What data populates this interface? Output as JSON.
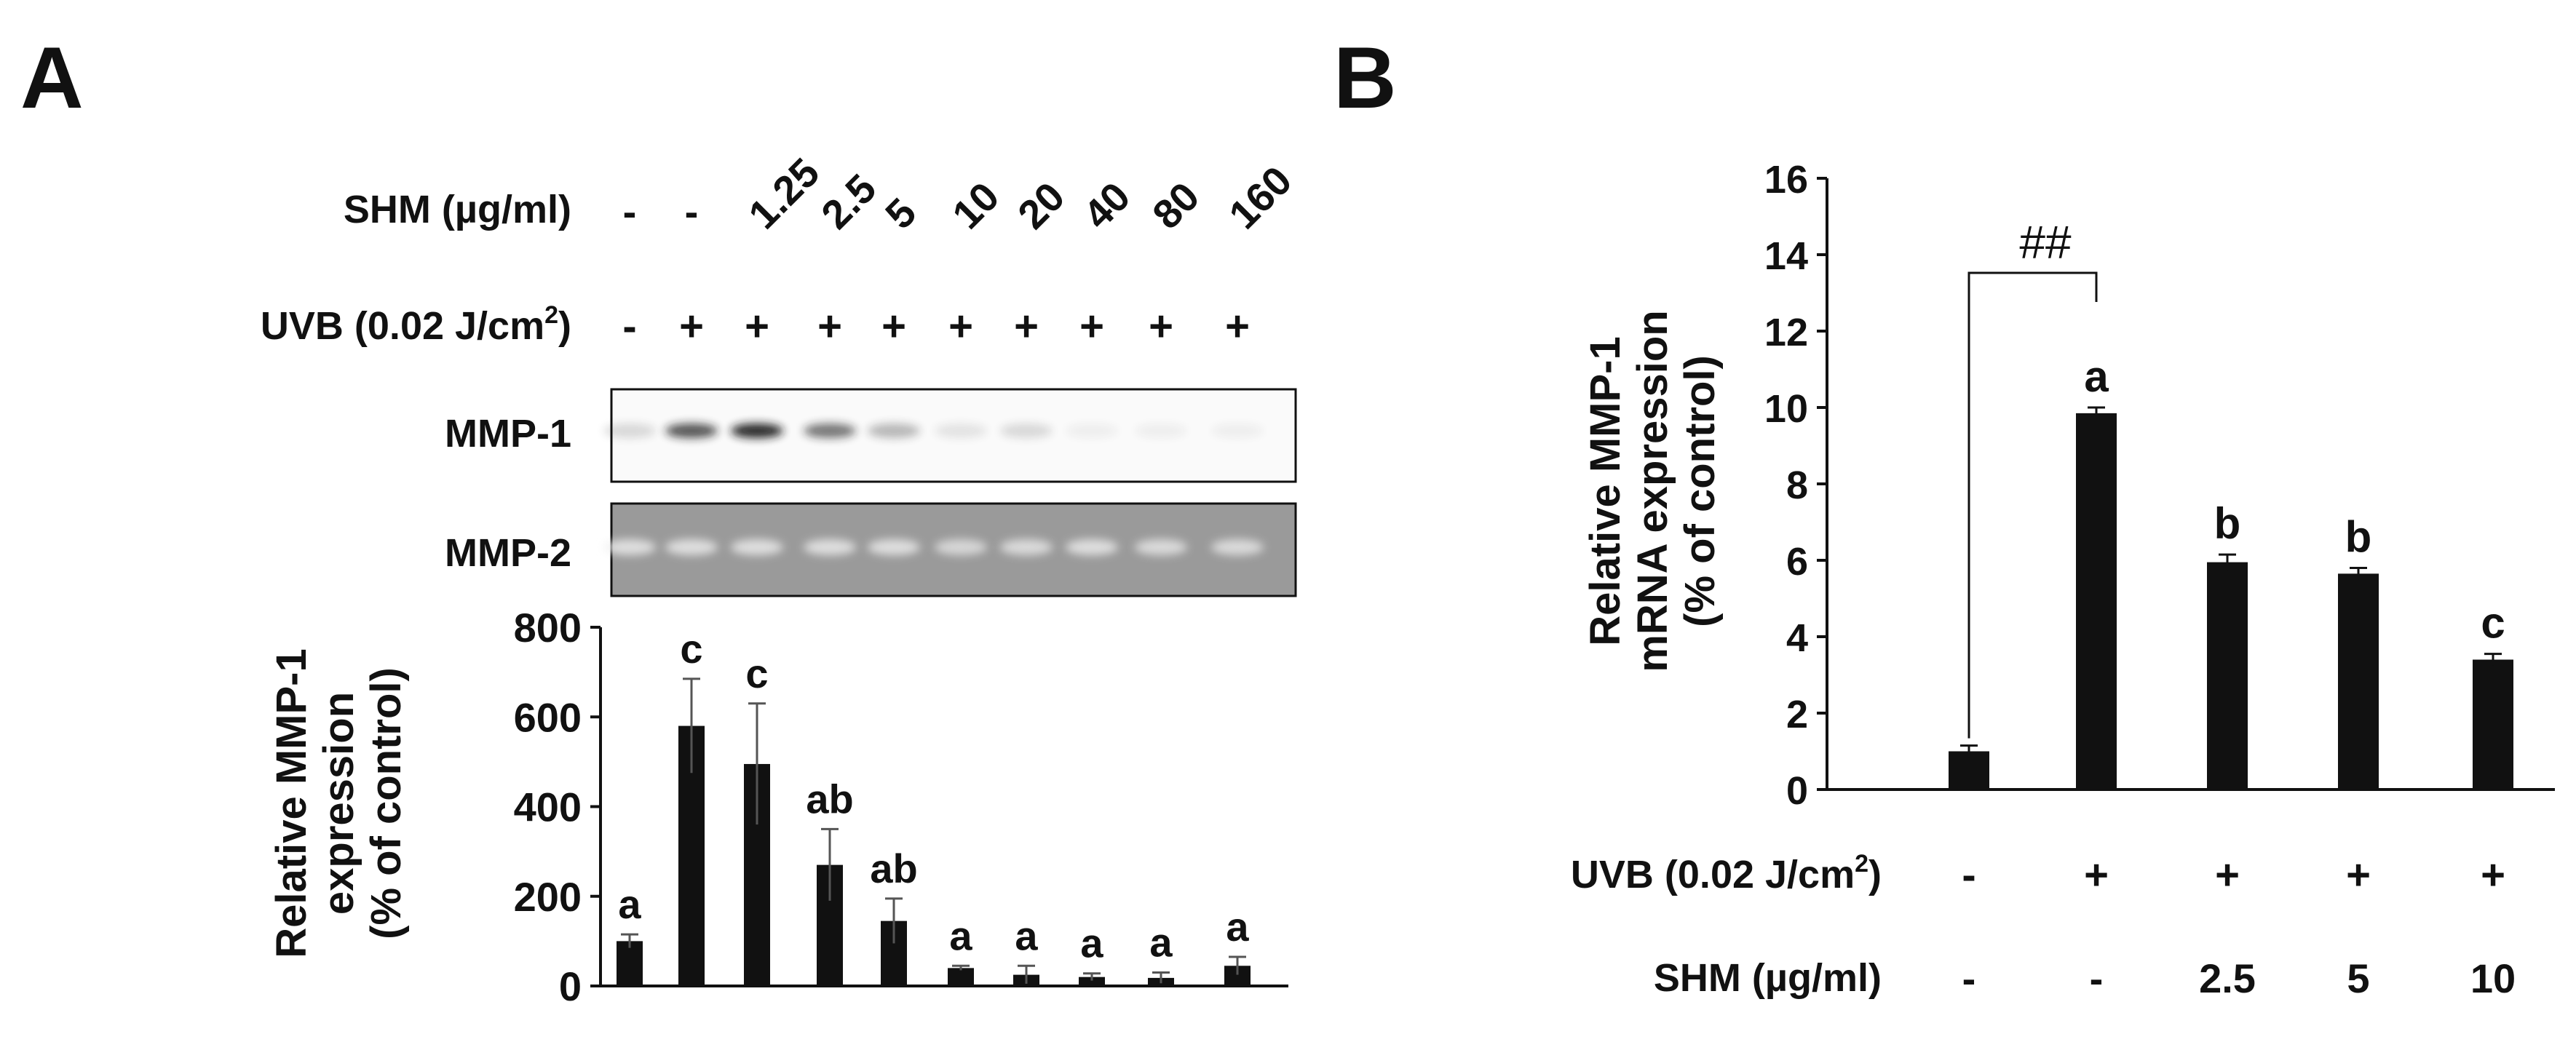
{
  "colors": {
    "bar": "#111111",
    "text": "#111111",
    "blot_bg_1": "#fafafa",
    "blot_bg_2": "#9a9a9a"
  },
  "panel_a": {
    "label": "A",
    "shm_label": "SHM (µg/ml)",
    "uvb_label": "UVB (0.02 J/cm",
    "uvb_sup": "2",
    "uvb_close": ")",
    "shm_values": [
      "-",
      "-",
      "1.25",
      "2.5",
      "5",
      "10",
      "20",
      "40",
      "80",
      "160"
    ],
    "uvb_values": [
      "-",
      "+",
      "+",
      "+",
      "+",
      "+",
      "+",
      "+",
      "+",
      "+"
    ],
    "blot_rows": [
      {
        "label": "MMP-1",
        "intensity": [
          0.15,
          0.75,
          0.95,
          0.6,
          0.3,
          0.1,
          0.15,
          0.05,
          0.05,
          0.05
        ]
      },
      {
        "label": "MMP-2",
        "intensity": [
          0.8,
          0.8,
          0.8,
          0.8,
          0.8,
          0.7,
          0.75,
          0.8,
          0.75,
          0.75
        ]
      }
    ]
  },
  "panel_b": {
    "label": "B",
    "annotation": "##",
    "uvb_label": "UVB (0.02 J/cm",
    "uvb_sup": "2",
    "uvb_close": ")",
    "shm_label": "SHM (µg/ml)",
    "uvb_values": [
      "-",
      "+",
      "+",
      "+",
      "+"
    ],
    "shm_values": [
      "-",
      "-",
      "2.5",
      "5",
      "10"
    ]
  },
  "chart_data": [
    {
      "type": "bar",
      "panel": "A",
      "categories": [
        "1",
        "2",
        "3",
        "4",
        "5",
        "6",
        "7",
        "8",
        "9",
        "10"
      ],
      "values": [
        100,
        580,
        495,
        270,
        145,
        40,
        25,
        20,
        18,
        45
      ],
      "errors": [
        15,
        105,
        135,
        80,
        50,
        5,
        20,
        8,
        12,
        20
      ],
      "letters": [
        "a",
        "c",
        "c",
        "ab",
        "ab",
        "a",
        "a",
        "a",
        "a",
        "a"
      ],
      "ylabel_lines": [
        "Relative MMP-1",
        "expression",
        "(% of control)"
      ],
      "yticks": [
        0,
        200,
        400,
        600,
        800
      ],
      "ylim": [
        0,
        800
      ]
    },
    {
      "type": "bar",
      "panel": "B",
      "categories": [
        "1",
        "2",
        "3",
        "4",
        "5"
      ],
      "values": [
        1.0,
        9.85,
        5.95,
        5.65,
        3.4
      ],
      "errors": [
        0.15,
        0.15,
        0.2,
        0.15,
        0.15
      ],
      "letters": [
        "",
        "a",
        "b",
        "b",
        "c"
      ],
      "ylabel_lines": [
        "Relative MMP-1",
        "mRNA expression",
        "(% of control)"
      ],
      "yticks": [
        0,
        2,
        4,
        6,
        8,
        10,
        12,
        14,
        16
      ],
      "ylim": [
        0,
        16
      ]
    }
  ]
}
